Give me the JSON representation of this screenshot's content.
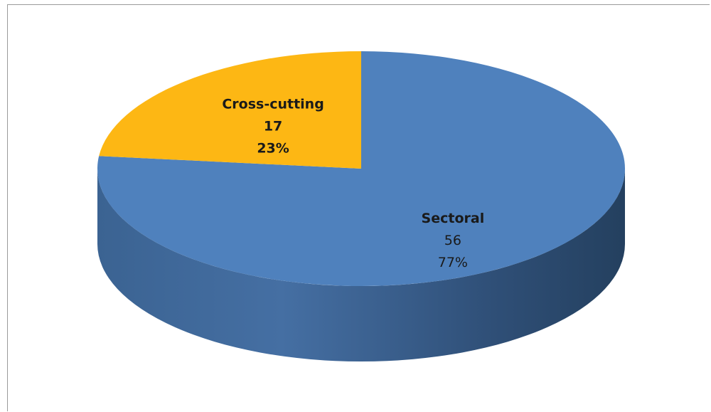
{
  "chart_data": {
    "type": "pie",
    "style": "3d",
    "start_angle_deg": 0,
    "direction": "clockwise",
    "legend": "none",
    "categories": [
      "Sectoral",
      "Cross-cutting"
    ],
    "values": [
      56,
      17
    ],
    "percent_labels": [
      "77%",
      "23%"
    ],
    "colors": [
      "#4f81bd",
      "#fdb714"
    ],
    "side_colors": [
      "#385d8a",
      "#b7830e"
    ]
  }
}
